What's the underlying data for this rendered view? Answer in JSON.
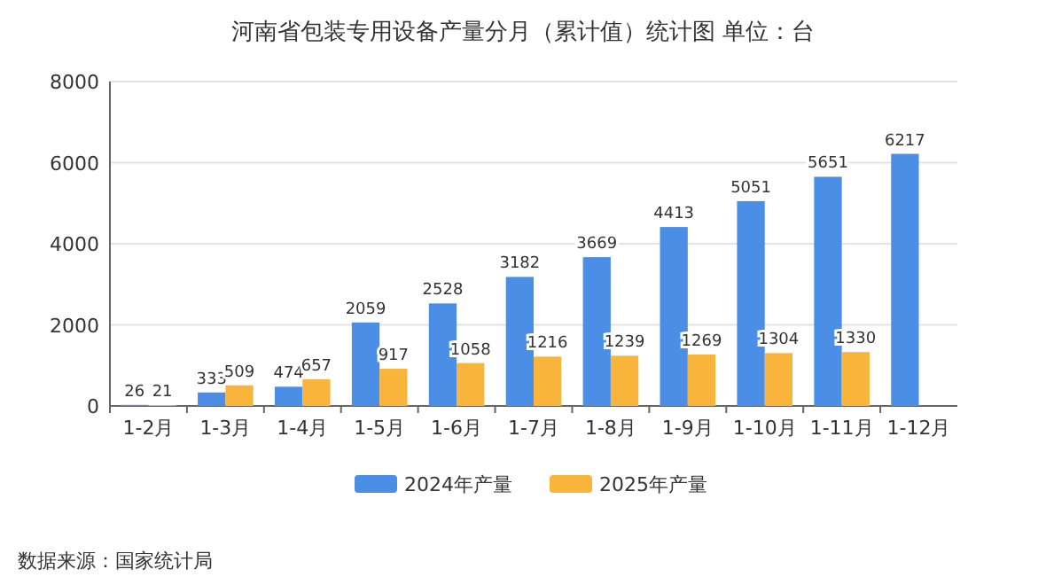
{
  "chart_data": {
    "type": "bar",
    "title": "河南省包装专用设备产量分月（累计值）统计图 单位：台",
    "categories": [
      "1-2月",
      "1-3月",
      "1-4月",
      "1-5月",
      "1-6月",
      "1-7月",
      "1-8月",
      "1-9月",
      "1-10月",
      "1-11月",
      "1-12月"
    ],
    "series": [
      {
        "name": "2024年产量",
        "color": "#4a8ee6",
        "values": [
          26,
          333,
          474,
          2059,
          2528,
          3182,
          3669,
          4413,
          5051,
          5651,
          6217
        ]
      },
      {
        "name": "2025年产量",
        "color": "#f9b43c",
        "values": [
          21,
          509,
          657,
          917,
          1058,
          1216,
          1239,
          1269,
          1304,
          1330,
          null
        ]
      }
    ],
    "ylim": [
      0,
      8000
    ],
    "yticks": [
      0,
      2000,
      4000,
      6000,
      8000
    ],
    "grid": "y",
    "legend": "bottom",
    "data_labels": true,
    "annotations": [
      "数据来源：国家统计局"
    ]
  }
}
